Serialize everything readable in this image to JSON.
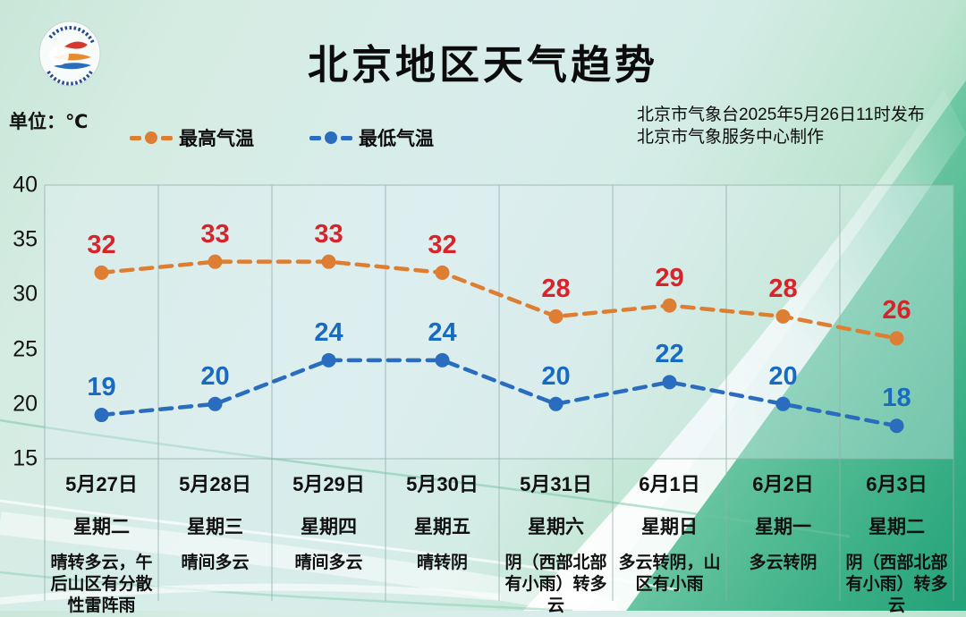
{
  "header": {
    "title": "北京地区天气趋势",
    "logo_icon": "meteorological-service-badge",
    "logo_rim_text": "METEOROLOGICAL SERV"
  },
  "meta": {
    "unit_label": "单位：℃",
    "issued_line1": "北京市气象台2025年5月26日11时发布",
    "issued_line2": "北京市气象服务中心制作"
  },
  "legend": [
    {
      "label": "最高气温",
      "color": "#dd7e33"
    },
    {
      "label": "最低气温",
      "color": "#2a6cbd"
    }
  ],
  "chart_data": {
    "type": "line",
    "title": "北京地区天气趋势",
    "unit": "℃",
    "ylim": [
      15,
      40
    ],
    "yticks": [
      40,
      35,
      30,
      25,
      20,
      15
    ],
    "grid": "vertical-only",
    "legend_position": "top",
    "line_style": "dashed",
    "categories": [
      "5月27日",
      "5月28日",
      "5月29日",
      "5月30日",
      "5月31日",
      "6月1日",
      "6月2日",
      "6月3日"
    ],
    "series": [
      {
        "name": "最高气温",
        "color": "#dd7e33",
        "label_color": "#d8232a",
        "values": [
          32,
          33,
          33,
          32,
          28,
          29,
          28,
          26
        ]
      },
      {
        "name": "最低气温",
        "color": "#2a6cbd",
        "label_color": "#186bc0",
        "values": [
          19,
          20,
          24,
          24,
          20,
          22,
          20,
          18
        ]
      }
    ]
  },
  "days": [
    {
      "date": "5月27日",
      "week": "星期二",
      "weather": "晴转多云，午后山区有分散性雷阵雨"
    },
    {
      "date": "5月28日",
      "week": "星期三",
      "weather": "晴间多云"
    },
    {
      "date": "5月29日",
      "week": "星期四",
      "weather": "晴间多云"
    },
    {
      "date": "5月30日",
      "week": "星期五",
      "weather": "晴转阴"
    },
    {
      "date": "5月31日",
      "week": "星期六",
      "weather": "阴（西部北部有小雨）转多云"
    },
    {
      "date": "6月1日",
      "week": "星期日",
      "weather": "多云转阴，山区有小雨"
    },
    {
      "date": "6月2日",
      "week": "星期一",
      "weather": "多云转阴"
    },
    {
      "date": "6月3日",
      "week": "星期二",
      "weather": "阴（西部北部有小雨）转多云"
    }
  ]
}
